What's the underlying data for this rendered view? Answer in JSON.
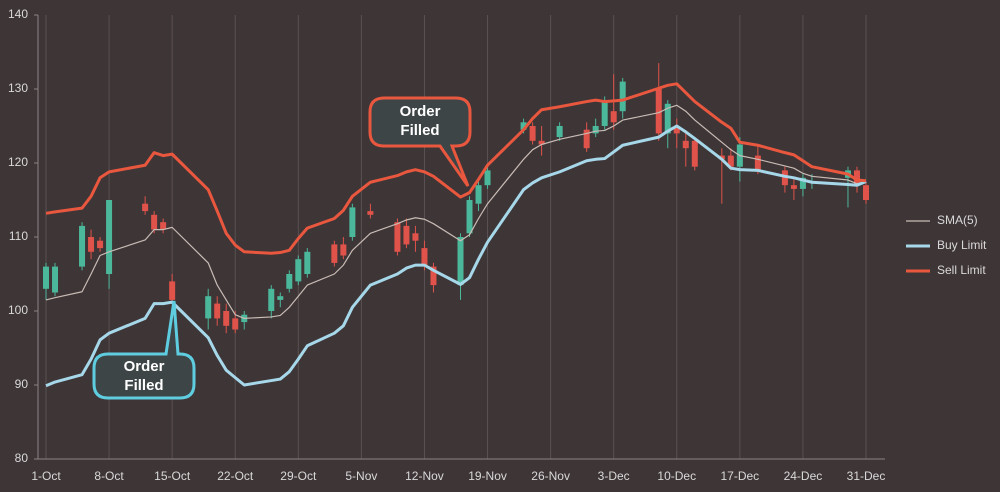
{
  "chart_data": {
    "type": "candlestick",
    "x": [
      "1-Oct",
      "2-Oct",
      "5-Oct",
      "6-Oct",
      "7-Oct",
      "8-Oct",
      "12-Oct",
      "13-Oct",
      "14-Oct",
      "15-Oct",
      "19-Oct",
      "20-Oct",
      "21-Oct",
      "22-Oct",
      "23-Oct",
      "26-Oct",
      "27-Oct",
      "28-Oct",
      "29-Oct",
      "30-Oct",
      "2-Nov",
      "3-Nov",
      "4-Nov",
      "6-Nov",
      "9-Nov",
      "10-Nov",
      "11-Nov",
      "12-Nov",
      "13-Nov",
      "16-Nov",
      "17-Nov",
      "18-Nov",
      "19-Nov",
      "23-Nov",
      "24-Nov",
      "25-Nov",
      "27-Nov",
      "30-Nov",
      "1-Dec",
      "2-Dec",
      "3-Dec",
      "4-Dec",
      "8-Dec",
      "9-Dec",
      "10-Dec",
      "11-Dec",
      "12-Dec",
      "15-Dec",
      "16-Dec",
      "17-Dec",
      "19-Dec",
      "22-Dec",
      "23-Dec",
      "24-Dec",
      "25-Dec",
      "29-Dec",
      "30-Dec",
      "31-Dec"
    ],
    "open": [
      103,
      102.5,
      106,
      110,
      109.5,
      105,
      114.5,
      113,
      112,
      104,
      99,
      101,
      100,
      99,
      98.5,
      100,
      101.5,
      103,
      104,
      105,
      109,
      109,
      110,
      113.5,
      112,
      111.5,
      110.5,
      108.5,
      106,
      103.5,
      110.5,
      114.5,
      117,
      124.5,
      125,
      123,
      123.5,
      124.5,
      124,
      125,
      127,
      127,
      130,
      124,
      125,
      123,
      123,
      121,
      121,
      119.5,
      121,
      119,
      117,
      116.5,
      117.5,
      118,
      119,
      117
    ],
    "high": [
      106.5,
      106.5,
      112,
      111,
      110,
      115,
      115.5,
      113.5,
      112.5,
      105,
      103,
      102,
      101,
      100,
      100,
      103.5,
      102.5,
      105.5,
      107.5,
      108.5,
      109.5,
      110,
      114.5,
      114.5,
      112.5,
      112.5,
      111.5,
      109.5,
      106.5,
      110.5,
      115.5,
      117.5,
      119.5,
      126,
      125.5,
      125,
      125.5,
      125.5,
      126,
      129,
      132,
      131.5,
      133.5,
      128.5,
      126,
      124,
      123.5,
      122,
      122,
      123.5,
      122.5,
      119.5,
      118,
      118.5,
      118.5,
      119.5,
      119.5,
      117.5
    ],
    "low": [
      101.5,
      102,
      105.5,
      107,
      108,
      103,
      113,
      110.5,
      110.5,
      101,
      97.5,
      98,
      97,
      97,
      97.5,
      99,
      100.5,
      102.5,
      103.5,
      104.5,
      106,
      107,
      109.5,
      112.5,
      107.5,
      108.5,
      108,
      105.5,
      102.5,
      101.5,
      110,
      113.5,
      116.5,
      124,
      122.5,
      121,
      123,
      121.5,
      123.5,
      124.5,
      124.5,
      126,
      123,
      122,
      122,
      119.5,
      119,
      114.5,
      119,
      117.5,
      118.5,
      116,
      115,
      115.5,
      116.5,
      114,
      116,
      114.5
    ],
    "close": [
      106,
      106,
      111.5,
      108,
      108.5,
      115,
      113.5,
      111,
      111,
      101.5,
      102,
      99,
      98,
      97.5,
      99.5,
      103,
      102,
      105,
      107,
      108,
      106.5,
      107.5,
      114,
      113,
      108,
      109,
      109.5,
      106,
      103.5,
      110,
      115,
      117,
      119,
      125.5,
      123,
      122.5,
      125,
      122,
      125,
      128.5,
      125.5,
      131,
      124,
      128,
      124,
      122,
      119.5,
      120.5,
      119.5,
      122.5,
      119,
      117,
      116.5,
      118,
      117.5,
      119,
      117,
      115
    ],
    "up_color": "#4cb89b",
    "down_color": "#e0534a",
    "series": [
      {
        "name": "SMA(5)",
        "color": "#c9bcb5",
        "width": 1.2,
        "values": [
          101.5,
          101.8,
          102.6,
          105,
          107.5,
          108,
          109.6,
          111,
          111,
          111.3,
          106.5,
          103.5,
          101.5,
          99.5,
          99,
          99.2,
          99.4,
          100.5,
          102,
          103.5,
          105,
          106.2,
          108.2,
          110.5,
          111.8,
          112.3,
          112.6,
          112.4,
          111.8,
          109.5,
          110.3,
          112.5,
          114.5,
          120.5,
          121.8,
          122.5,
          123.2,
          124,
          124.3,
          124.4,
          125,
          125.8,
          126.8,
          127.4,
          127.8,
          127,
          125.8,
          122.8,
          121.8,
          121,
          120.5,
          119.6,
          119.3,
          118.6,
          118.2,
          117.7,
          117.2,
          117.4
        ]
      },
      {
        "name": "Buy Limit",
        "color": "#a6d8ea",
        "width": 3,
        "values": [
          89.9,
          90.4,
          91.4,
          93.5,
          96.1,
          97,
          99,
          101,
          101,
          101.2,
          96.4,
          94,
          92,
          91,
          90,
          90.6,
          90.8,
          91.8,
          93.5,
          95.3,
          97,
          98,
          100.5,
          103.5,
          105,
          105.8,
          106.2,
          106.2,
          105.5,
          103.6,
          104.5,
          107,
          109.3,
          116.4,
          117.3,
          118,
          118.8,
          120.3,
          120.5,
          120.6,
          121.5,
          122.4,
          123.5,
          124.3,
          125,
          124.2,
          123.3,
          120.5,
          119.3,
          119.1,
          119,
          118.2,
          118,
          117.7,
          117.4,
          117.1,
          117,
          117.5
        ]
      },
      {
        "name": "Sell Limit",
        "color": "#e8573e",
        "width": 3,
        "values": [
          113.2,
          113.4,
          113.9,
          115.5,
          118,
          118.8,
          119.7,
          121.4,
          121,
          121.2,
          116.4,
          113.5,
          110.5,
          108.9,
          108,
          107.8,
          107.9,
          108.2,
          109.8,
          111.2,
          112.5,
          113.6,
          115.5,
          117.4,
          118.3,
          118.8,
          119.1,
          118.8,
          118.2,
          115.4,
          116,
          117.8,
          119.7,
          124.5,
          126,
          127.2,
          127.6,
          128.3,
          128.5,
          128.3,
          128.4,
          128.5,
          130.1,
          130.5,
          130.7,
          129.5,
          128.3,
          125.5,
          124.7,
          122.8,
          122.4,
          121.4,
          121.1,
          120.3,
          119.5,
          118.5,
          117.7,
          117.6
        ]
      }
    ],
    "ylim": [
      80,
      140
    ],
    "yticks": [
      80,
      90,
      100,
      110,
      120,
      130,
      140
    ],
    "xticks": [
      "1-Oct",
      "8-Oct",
      "15-Oct",
      "22-Oct",
      "29-Oct",
      "5-Nov",
      "12-Nov",
      "19-Nov",
      "26-Nov",
      "3-Dec",
      "10-Dec",
      "17-Dec",
      "24-Dec",
      "31-Dec"
    ],
    "xgrid": true,
    "legend": "right",
    "annotations": [
      "Order Filled",
      "Order Filled"
    ]
  }
}
